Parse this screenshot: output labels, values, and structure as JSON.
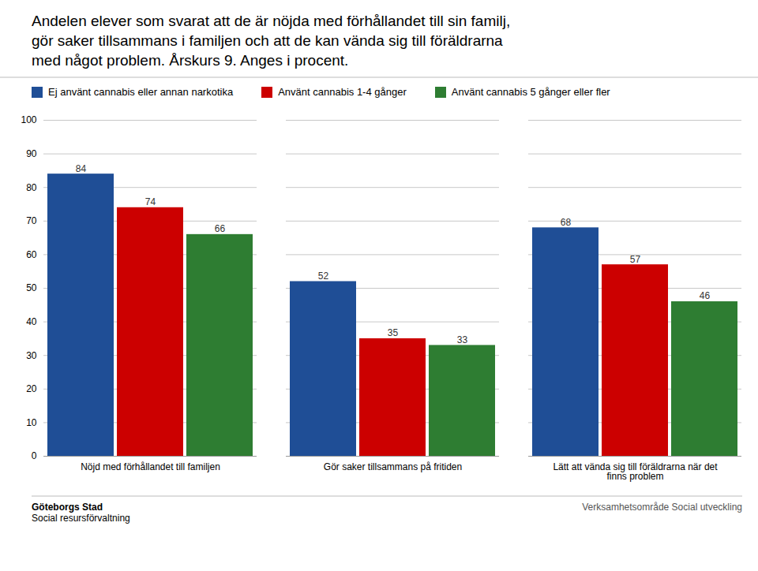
{
  "chart_data": {
    "type": "bar",
    "title": "Andelen elever som svarat att de är nöjda med förhållandet till sin familj,\ngör saker tillsammans i familjen och att de kan vända sig till föräldrarna\nmed något problem. Årskurs 9. Anges i procent.",
    "categories": [
      "Nöjd med förhållandet till familjen",
      "Gör saker tillsammans på fritiden",
      "Lätt att vända sig till föräldrarna när det\nfinns problem"
    ],
    "series": [
      {
        "name": "Ej använt cannabis eller annan narkotika",
        "color": "#1f4e96",
        "values": [
          84,
          52,
          68
        ]
      },
      {
        "name": "Använt cannabis 1-4 gånger",
        "color": "#cc0000",
        "values": [
          74,
          35,
          57
        ]
      },
      {
        "name": "Använt cannabis 5 gånger eller fler",
        "color": "#2e7d32",
        "values": [
          66,
          33,
          46
        ]
      }
    ],
    "ylim": [
      0,
      100
    ],
    "yticks": [
      0,
      10,
      20,
      30,
      40,
      50,
      60,
      70,
      80,
      90,
      100
    ],
    "grid": true,
    "legend": "top",
    "data_labels": true,
    "annotations": [
      "Göteborgs Stad",
      "Social resursförvaltning",
      "Verksamhetsområde Social utveckling"
    ]
  }
}
